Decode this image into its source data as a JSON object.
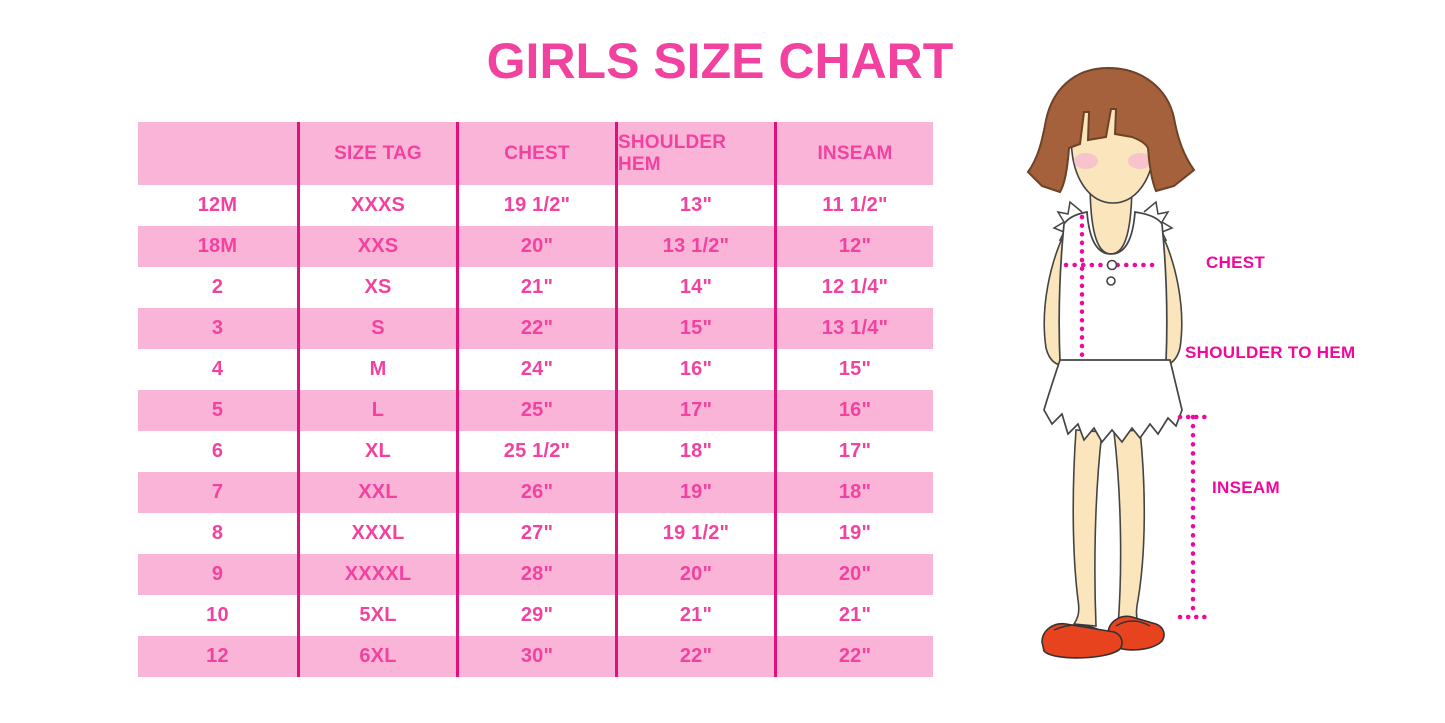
{
  "chart_data": {
    "type": "table",
    "title": "GIRLS SIZE CHART",
    "columns": [
      "",
      "SIZE TAG",
      "CHEST",
      "SHOULDER HEM",
      "INSEAM"
    ],
    "rows": [
      [
        "12M",
        "XXXS",
        "19 1/2\"",
        "13\"",
        "11 1/2\""
      ],
      [
        "18M",
        "XXS",
        "20\"",
        "13 1/2\"",
        "12\""
      ],
      [
        "2",
        "XS",
        "21\"",
        "14\"",
        "12 1/4\""
      ],
      [
        "3",
        "S",
        "22\"",
        "15\"",
        "13 1/4\""
      ],
      [
        "4",
        "M",
        "24\"",
        "16\"",
        "15\""
      ],
      [
        "5",
        "L",
        "25\"",
        "17\"",
        "16\""
      ],
      [
        "6",
        "XL",
        "25 1/2\"",
        "18\"",
        "17\""
      ],
      [
        "7",
        "XXL",
        "26\"",
        "19\"",
        "18\""
      ],
      [
        "8",
        "XXXL",
        "27\"",
        "19 1/2\"",
        "19\""
      ],
      [
        "9",
        "XXXXL",
        "28\"",
        "20\"",
        "20\""
      ],
      [
        "10",
        "5XL",
        "29\"",
        "21\"",
        "21\""
      ],
      [
        "12",
        "6XL",
        "30\"",
        "22\"",
        "22\""
      ]
    ],
    "layout": {
      "striped": true,
      "stripe_start": "header-pink-then-white",
      "grid": "vertical-dividers-only"
    }
  },
  "diagram": {
    "labels": {
      "chest": "CHEST",
      "shoulder_to_hem": "SHOULDER TO HEM",
      "inseam": "INSEAM"
    }
  },
  "colors": {
    "accent_pink_text": "#F2429F",
    "row_pink": "#FAB4D8",
    "divider_pink": "#E0117C",
    "measure_pink": "#F0079B",
    "hair_brown": "#A4613B",
    "skin": "#FBE5BC",
    "blush": "#F5BECD",
    "shoe_red": "#E8431F"
  }
}
